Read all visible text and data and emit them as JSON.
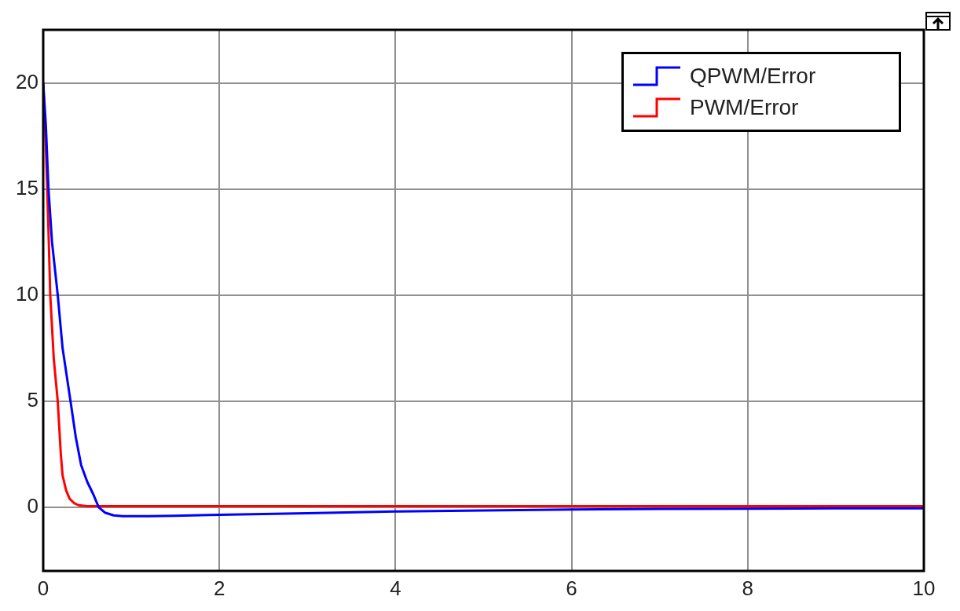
{
  "chart_data": {
    "type": "line",
    "xlim": [
      0,
      10
    ],
    "xticks": [
      0,
      2,
      4,
      6,
      8,
      10
    ],
    "ylim": [
      -3,
      22.5
    ],
    "yticks": [
      0,
      5,
      10,
      15,
      20
    ],
    "grid": true,
    "legend": "top right",
    "marker": "none",
    "line_style": "solid",
    "series": [
      {
        "name": "QPWM/Error",
        "color": "#0000ff",
        "x": [
          0,
          0.03,
          0.06,
          0.1,
          0.165,
          0.22,
          0.31,
          0.37,
          0.43,
          0.5,
          0.57,
          0.63,
          0.7,
          0.8,
          0.9,
          1.2,
          1.5,
          2,
          3,
          4,
          5,
          6,
          7,
          8,
          9,
          10
        ],
        "values": [
          20,
          18,
          15,
          12.5,
          10,
          7.5,
          5,
          3.3,
          2,
          1.2,
          0.6,
          0,
          -0.25,
          -0.38,
          -0.42,
          -0.42,
          -0.4,
          -0.35,
          -0.28,
          -0.2,
          -0.15,
          -0.1,
          -0.08,
          -0.07,
          -0.05,
          -0.05
        ]
      },
      {
        "name": "PWM/Error",
        "color": "#ff0000",
        "x": [
          0,
          0.03,
          0.06,
          0.08,
          0.12,
          0.165,
          0.2,
          0.22,
          0.26,
          0.3,
          0.35,
          0.4,
          0.5,
          0.6,
          1,
          2,
          4,
          6,
          8,
          10
        ],
        "values": [
          20,
          17,
          13,
          10,
          7,
          5,
          2.5,
          1.5,
          0.8,
          0.4,
          0.2,
          0.1,
          0.05,
          0.05,
          0.05,
          0.05,
          0.05,
          0.05,
          0.05,
          0.05
        ]
      }
    ]
  }
}
